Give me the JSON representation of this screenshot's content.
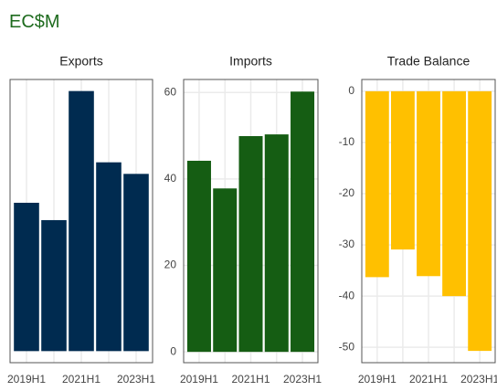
{
  "title": "EC$M",
  "chart_data": [
    {
      "type": "bar",
      "title": "Exports",
      "categories": [
        "2019H1",
        null,
        "2021H1",
        null,
        "2023H1"
      ],
      "values": [
        7.7,
        6.8,
        13.5,
        9.8,
        9.2
      ],
      "color": "#002b50",
      "ylim": [
        -0.6,
        14.1
      ],
      "yticks": [],
      "grid": true
    },
    {
      "type": "bar",
      "title": "Imports",
      "categories": [
        "2019H1",
        null,
        "2021H1",
        null,
        "2023H1"
      ],
      "values": [
        44.2,
        37.8,
        49.9,
        50.3,
        60.2
      ],
      "color": "#155d13",
      "ylim": [
        -2.5,
        63
      ],
      "yticks": [
        0,
        20,
        40,
        60
      ],
      "grid": true
    },
    {
      "type": "bar",
      "title": "Trade Balance",
      "categories": [
        "2019H1",
        null,
        "2021H1",
        null,
        "2023H1"
      ],
      "values": [
        -36.3,
        -30.9,
        -36.1,
        -40.0,
        -50.7
      ],
      "color": "#ffc000",
      "ylim": [
        -53,
        2.3
      ],
      "yticks": [
        0,
        -10,
        -20,
        -30,
        -40,
        -50
      ],
      "grid": true
    }
  ]
}
